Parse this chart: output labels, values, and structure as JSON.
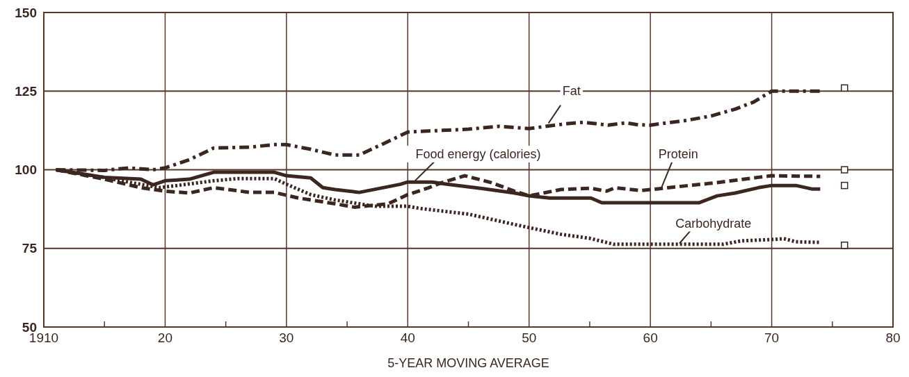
{
  "chart_data": {
    "type": "line",
    "xlabel": "5-YEAR MOVING AVERAGE",
    "xlim": [
      1910,
      1980
    ],
    "xticks": [
      1910,
      {
        "value": 1915,
        "label": null
      },
      {
        "value": 1920,
        "label": "20"
      },
      {
        "value": 1925,
        "label": null
      },
      {
        "value": 1930,
        "label": "30"
      },
      {
        "value": 1935,
        "label": null
      },
      {
        "value": 1940,
        "label": "40"
      },
      {
        "value": 1945,
        "label": null
      },
      {
        "value": 1950,
        "label": "50"
      },
      {
        "value": 1955,
        "label": null
      },
      {
        "value": 1960,
        "label": "60"
      },
      {
        "value": 1965,
        "label": null
      },
      {
        "value": 1970,
        "label": "70"
      },
      {
        "value": 1975,
        "label": null
      },
      {
        "value": 1980,
        "label": "80"
      }
    ],
    "ylim": [
      50,
      150
    ],
    "yticks": [
      50,
      75,
      100,
      125,
      150
    ],
    "grid": true,
    "series": [
      {
        "name": "Fat",
        "color": "#3b2620",
        "line_style": "dashdot",
        "x": [
          1911,
          1915,
          1917,
          1919,
          1920,
          1922,
          1924,
          1927,
          1929,
          1930,
          1932,
          1934,
          1936,
          1938,
          1940,
          1945,
          1947.5,
          1950,
          1953,
          1954.5,
          1956.5,
          1958,
          1959,
          1960,
          1963,
          1965,
          1967,
          1968.5,
          1970,
          1974
        ],
        "values": [
          100,
          99.8,
          100.6,
          100,
          100.6,
          103.2,
          106.9,
          107.2,
          108,
          108,
          106.5,
          104.7,
          104.7,
          108.3,
          112,
          112.9,
          113.8,
          113.1,
          114.6,
          115.1,
          114.2,
          114.9,
          114.3,
          114.2,
          115.7,
          117.1,
          119.3,
          121.5,
          125,
          125
        ]
      },
      {
        "name": "Food energy (calories)",
        "color": "#3b2620",
        "line_style": "solid",
        "x": [
          1911,
          1915,
          1918,
          1919,
          1920,
          1922,
          1924,
          1929,
          1930,
          1932,
          1933,
          1934,
          1936,
          1939.4,
          1940,
          1942,
          1943.2,
          1946,
          1948.8,
          1950,
          1951.7,
          1955.1,
          1956,
          1964,
          1965.5,
          1967,
          1968.9,
          1970,
          1972,
          1973.3,
          1974
        ],
        "values": [
          100,
          97.6,
          97,
          95.2,
          96.5,
          97,
          99.2,
          99.2,
          98.1,
          97.4,
          94.3,
          93.7,
          92.8,
          95.4,
          96.1,
          96.1,
          95.4,
          94.1,
          92.6,
          91.7,
          91,
          91,
          89.5,
          89.5,
          91.7,
          92.6,
          94.3,
          95,
          95,
          93.9,
          93.9
        ]
      },
      {
        "name": "Protein",
        "color": "#3b2620",
        "line_style": "dashed",
        "x": [
          1911,
          1915,
          1918,
          1920,
          1922,
          1924,
          1927,
          1929,
          1931,
          1934,
          1935.6,
          1938.4,
          1940,
          1941.6,
          1942.8,
          1944.7,
          1946.9,
          1948.8,
          1950,
          1952.6,
          1955.1,
          1956.4,
          1957.1,
          1959.2,
          1960,
          1963.2,
          1965.5,
          1968.9,
          1970,
          1974
        ],
        "values": [
          100,
          97,
          94.3,
          93.2,
          92.6,
          94.3,
          92.8,
          92.8,
          91,
          89.2,
          88.1,
          89.2,
          92.1,
          94.1,
          95.9,
          98.1,
          95.9,
          93.2,
          91.7,
          93.7,
          94.1,
          93.2,
          94.3,
          93.4,
          93.7,
          95,
          95.9,
          97.6,
          98.1,
          97.9
        ]
      },
      {
        "name": "Carbohydrate",
        "color": "#3b2620",
        "line_style": "dotted",
        "x": [
          1911,
          1915,
          1919.5,
          1921,
          1924,
          1926,
          1929,
          1930,
          1932,
          1934,
          1937.3,
          1940,
          1941,
          1945,
          1948.8,
          1952.6,
          1955,
          1957,
          1966,
          1967.5,
          1970,
          1971,
          1972,
          1974
        ],
        "values": [
          100,
          97.5,
          94.3,
          95,
          96.5,
          97.2,
          97.2,
          95.4,
          92.1,
          90.4,
          88.4,
          88.4,
          87.7,
          85.9,
          82.6,
          79.5,
          78.2,
          76.3,
          76.3,
          77.4,
          77.8,
          78.1,
          77.1,
          76.9
        ]
      },
      {
        "type": "scatter",
        "marker": "square",
        "color": "#3b2620",
        "x": [
          1976
        ],
        "values": [
          126
        ]
      },
      {
        "type": "scatter",
        "marker": "square",
        "color": "#3b2620",
        "x": [
          1976
        ],
        "values": [
          100
        ]
      },
      {
        "type": "scatter",
        "marker": "square",
        "color": "#3b2620",
        "x": [
          1976
        ],
        "values": [
          95
        ]
      },
      {
        "type": "scatter",
        "marker": "square",
        "color": "#3b2620",
        "x": [
          1976
        ],
        "values": [
          76
        ]
      }
    ]
  }
}
